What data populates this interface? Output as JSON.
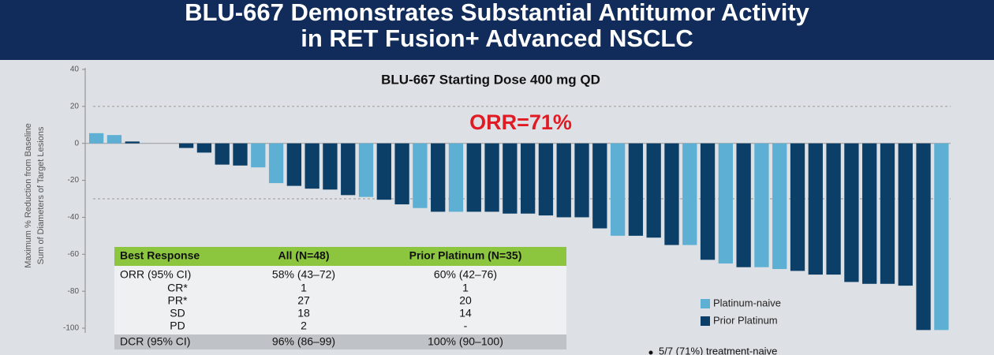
{
  "header": {
    "lines": [
      "BLU-667 Demonstrates Substantial Antitumor Activity",
      "in RET Fusion+ Advanced NSCLC"
    ]
  },
  "chart_data": {
    "type": "bar",
    "title": "BLU-667 Starting Dose 400 mg QD",
    "annotation": "ORR=71%",
    "y_label": [
      "Maximum % Reduction from Baseline",
      "Sum of Diameters of Target Lesions"
    ],
    "ylim": [
      -102,
      40
    ],
    "yticks": [
      40,
      20,
      0,
      -20,
      -40,
      -60,
      -80,
      -100
    ],
    "reference_lines": [
      20,
      -30
    ],
    "legend_position": "lower right",
    "series": [
      {
        "name": "Platinum-naive",
        "color": "#5db0d3",
        "values": [
          5.5,
          4.5,
          null,
          null,
          null,
          null,
          null,
          null,
          null,
          -13,
          -21.5,
          null,
          null,
          null,
          null,
          -29,
          null,
          null,
          -35,
          null,
          -37,
          null,
          null,
          null,
          null,
          null,
          null,
          null,
          null,
          -50,
          null,
          null,
          null,
          -55,
          null,
          -65,
          null,
          -67,
          -68,
          null,
          null,
          null,
          null,
          null,
          null,
          null,
          null,
          -101
        ]
      },
      {
        "name": "Prior Platinum",
        "color": "#0b3f68",
        "values": [
          null,
          null,
          1,
          0,
          0,
          -2.5,
          -5,
          -11.5,
          -12,
          null,
          null,
          -23,
          -24.5,
          -25,
          -28,
          null,
          -30.5,
          -33,
          null,
          -37,
          null,
          -37,
          -37,
          -38,
          -38,
          -39,
          -40,
          -40,
          -46,
          null,
          -50,
          -51,
          -55,
          null,
          -63,
          null,
          -67,
          null,
          null,
          -69,
          -71,
          -71,
          -75,
          -76,
          -76,
          -77,
          -101,
          null
        ]
      }
    ]
  },
  "table": {
    "header": [
      "Best Response",
      "All (N=48)",
      "Prior Platinum (N=35)"
    ],
    "rows": [
      [
        "ORR (95% CI)",
        "58% (43–72)",
        "60% (42–76)"
      ],
      [
        "CR*",
        "1",
        "1"
      ],
      [
        "PR*",
        "27",
        "20"
      ],
      [
        "SD",
        "18",
        "14"
      ],
      [
        "PD",
        "2",
        "-"
      ],
      [
        "DCR (95% CI)",
        "96% (86–99)",
        "100% (90–100)"
      ]
    ]
  },
  "footnote": "5/7 (71%) treatment-naive"
}
